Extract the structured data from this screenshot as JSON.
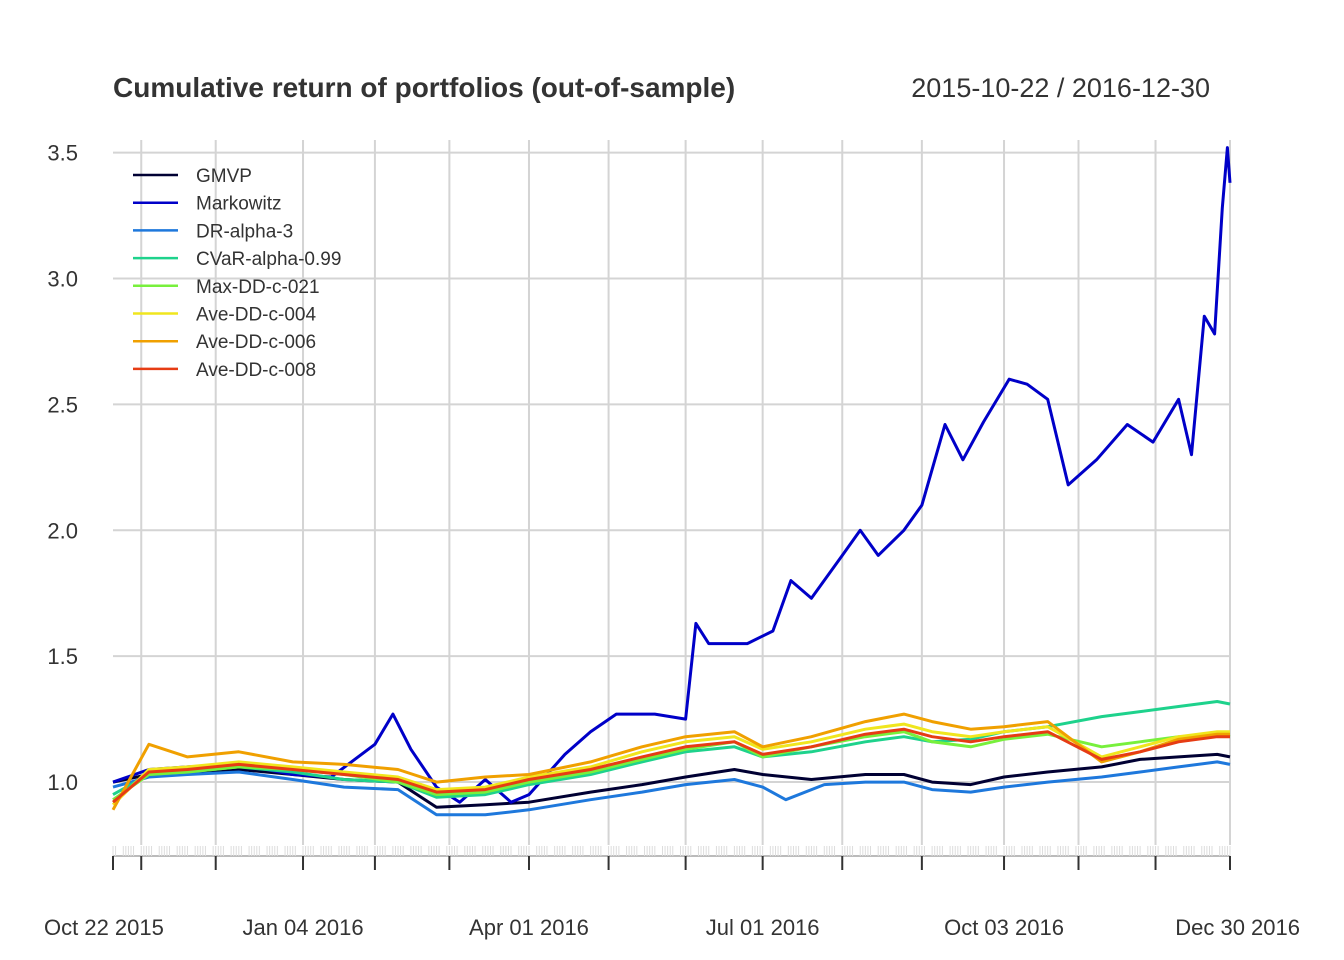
{
  "chart_data": {
    "type": "line",
    "title": "Cumulative return of portfolios (out-of-sample)",
    "date_range": "2015-10-22 / 2016-12-30",
    "x_start": "2015-10-22",
    "x_end": "2016-12-30",
    "ylim": [
      0.75,
      3.55
    ],
    "y_ticks": [
      1.0,
      1.5,
      2.0,
      2.5,
      3.0,
      3.5
    ],
    "y_tick_labels": [
      "1.0",
      "1.5",
      "2.0",
      "2.5",
      "3.0",
      "3.5"
    ],
    "x_tick_labels": [
      {
        "date": "2015-10-22",
        "label": "Oct 22 2015"
      },
      {
        "date": "2016-01-04",
        "label": "Jan 04 2016"
      },
      {
        "date": "2016-04-01",
        "label": "Apr 01 2016"
      },
      {
        "date": "2016-07-01",
        "label": "Jul 01 2016"
      },
      {
        "date": "2016-10-03",
        "label": "Oct 03 2016"
      },
      {
        "date": "2016-12-30",
        "label": "Dec 30 2016"
      }
    ],
    "x_minor_ticks": [
      "2015-11-02",
      "2015-12-01",
      "2016-01-04",
      "2016-02-01",
      "2016-03-01",
      "2016-04-01",
      "2016-05-02",
      "2016-06-01",
      "2016-07-01",
      "2016-08-01",
      "2016-09-01",
      "2016-10-03",
      "2016-11-01",
      "2016-12-01",
      "2016-12-30"
    ],
    "grid": true,
    "legend_position": "top-left",
    "series": [
      {
        "name": "GMVP",
        "color": "#000033",
        "points": [
          [
            "2015-10-22",
            1.0
          ],
          [
            "2015-11-05",
            1.03
          ],
          [
            "2015-11-20",
            1.04
          ],
          [
            "2015-12-10",
            1.05
          ],
          [
            "2015-12-31",
            1.03
          ],
          [
            "2016-01-20",
            1.01
          ],
          [
            "2016-02-10",
            1.0
          ],
          [
            "2016-02-25",
            0.9
          ],
          [
            "2016-03-15",
            0.91
          ],
          [
            "2016-04-01",
            0.92
          ],
          [
            "2016-04-25",
            0.96
          ],
          [
            "2016-05-15",
            0.99
          ],
          [
            "2016-06-01",
            1.02
          ],
          [
            "2016-06-20",
            1.05
          ],
          [
            "2016-07-01",
            1.03
          ],
          [
            "2016-07-20",
            1.01
          ],
          [
            "2016-08-10",
            1.03
          ],
          [
            "2016-08-25",
            1.03
          ],
          [
            "2016-09-05",
            1.0
          ],
          [
            "2016-09-20",
            0.99
          ],
          [
            "2016-10-03",
            1.02
          ],
          [
            "2016-10-20",
            1.04
          ],
          [
            "2016-11-10",
            1.06
          ],
          [
            "2016-11-25",
            1.09
          ],
          [
            "2016-12-10",
            1.1
          ],
          [
            "2016-12-25",
            1.11
          ],
          [
            "2016-12-30",
            1.1
          ]
        ]
      },
      {
        "name": "Markowitz",
        "color": "#0000c8",
        "points": [
          [
            "2015-10-22",
            1.0
          ],
          [
            "2015-11-05",
            1.05
          ],
          [
            "2015-11-20",
            1.06
          ],
          [
            "2015-12-10",
            1.07
          ],
          [
            "2015-12-31",
            1.03
          ],
          [
            "2016-01-15",
            1.02
          ],
          [
            "2016-02-01",
            1.15
          ],
          [
            "2016-02-08",
            1.27
          ],
          [
            "2016-02-15",
            1.13
          ],
          [
            "2016-02-25",
            0.98
          ],
          [
            "2016-03-05",
            0.92
          ],
          [
            "2016-03-15",
            1.01
          ],
          [
            "2016-03-25",
            0.92
          ],
          [
            "2016-04-01",
            0.95
          ],
          [
            "2016-04-15",
            1.11
          ],
          [
            "2016-04-25",
            1.2
          ],
          [
            "2016-05-05",
            1.27
          ],
          [
            "2016-05-20",
            1.27
          ],
          [
            "2016-06-01",
            1.25
          ],
          [
            "2016-06-05",
            1.63
          ],
          [
            "2016-06-10",
            1.55
          ],
          [
            "2016-06-25",
            1.55
          ],
          [
            "2016-07-05",
            1.6
          ],
          [
            "2016-07-12",
            1.8
          ],
          [
            "2016-07-20",
            1.73
          ],
          [
            "2016-08-01",
            1.9
          ],
          [
            "2016-08-08",
            2.0
          ],
          [
            "2016-08-15",
            1.9
          ],
          [
            "2016-08-25",
            2.0
          ],
          [
            "2016-09-01",
            2.1
          ],
          [
            "2016-09-10",
            2.42
          ],
          [
            "2016-09-17",
            2.28
          ],
          [
            "2016-09-25",
            2.43
          ],
          [
            "2016-10-05",
            2.6
          ],
          [
            "2016-10-12",
            2.58
          ],
          [
            "2016-10-20",
            2.52
          ],
          [
            "2016-10-28",
            2.18
          ],
          [
            "2016-11-08",
            2.28
          ],
          [
            "2016-11-20",
            2.42
          ],
          [
            "2016-11-30",
            2.35
          ],
          [
            "2016-12-10",
            2.52
          ],
          [
            "2016-12-15",
            2.3
          ],
          [
            "2016-12-20",
            2.85
          ],
          [
            "2016-12-24",
            2.78
          ],
          [
            "2016-12-27",
            3.28
          ],
          [
            "2016-12-29",
            3.52
          ],
          [
            "2016-12-30",
            3.38
          ]
        ]
      },
      {
        "name": "DR-alpha-3",
        "color": "#1e78dc",
        "points": [
          [
            "2015-10-22",
            0.98
          ],
          [
            "2015-11-05",
            1.02
          ],
          [
            "2015-11-20",
            1.03
          ],
          [
            "2015-12-10",
            1.04
          ],
          [
            "2015-12-31",
            1.01
          ],
          [
            "2016-01-20",
            0.98
          ],
          [
            "2016-02-10",
            0.97
          ],
          [
            "2016-02-25",
            0.87
          ],
          [
            "2016-03-15",
            0.87
          ],
          [
            "2016-04-01",
            0.89
          ],
          [
            "2016-04-25",
            0.93
          ],
          [
            "2016-05-15",
            0.96
          ],
          [
            "2016-06-01",
            0.99
          ],
          [
            "2016-06-20",
            1.01
          ],
          [
            "2016-07-01",
            0.98
          ],
          [
            "2016-07-10",
            0.93
          ],
          [
            "2016-07-25",
            0.99
          ],
          [
            "2016-08-10",
            1.0
          ],
          [
            "2016-08-25",
            1.0
          ],
          [
            "2016-09-05",
            0.97
          ],
          [
            "2016-09-20",
            0.96
          ],
          [
            "2016-10-03",
            0.98
          ],
          [
            "2016-10-20",
            1.0
          ],
          [
            "2016-11-10",
            1.02
          ],
          [
            "2016-11-25",
            1.04
          ],
          [
            "2016-12-10",
            1.06
          ],
          [
            "2016-12-25",
            1.08
          ],
          [
            "2016-12-30",
            1.07
          ]
        ]
      },
      {
        "name": "CVaR-alpha-0.99",
        "color": "#1ed28c",
        "points": [
          [
            "2015-10-22",
            0.95
          ],
          [
            "2015-11-05",
            1.03
          ],
          [
            "2015-11-20",
            1.04
          ],
          [
            "2015-12-10",
            1.06
          ],
          [
            "2015-12-31",
            1.04
          ],
          [
            "2016-01-20",
            1.01
          ],
          [
            "2016-02-10",
            1.0
          ],
          [
            "2016-02-25",
            0.94
          ],
          [
            "2016-03-15",
            0.95
          ],
          [
            "2016-04-01",
            0.99
          ],
          [
            "2016-04-25",
            1.03
          ],
          [
            "2016-05-15",
            1.08
          ],
          [
            "2016-06-01",
            1.12
          ],
          [
            "2016-06-20",
            1.14
          ],
          [
            "2016-07-01",
            1.1
          ],
          [
            "2016-07-20",
            1.12
          ],
          [
            "2016-08-10",
            1.16
          ],
          [
            "2016-08-25",
            1.18
          ],
          [
            "2016-09-05",
            1.16
          ],
          [
            "2016-09-20",
            1.17
          ],
          [
            "2016-10-03",
            1.2
          ],
          [
            "2016-10-20",
            1.22
          ],
          [
            "2016-11-10",
            1.26
          ],
          [
            "2016-11-25",
            1.28
          ],
          [
            "2016-12-10",
            1.3
          ],
          [
            "2016-12-25",
            1.32
          ],
          [
            "2016-12-30",
            1.31
          ]
        ]
      },
      {
        "name": "Max-DD-c-021",
        "color": "#78f03c",
        "points": [
          [
            "2015-10-22",
            0.93
          ],
          [
            "2015-11-05",
            1.03
          ],
          [
            "2015-11-20",
            1.04
          ],
          [
            "2015-12-10",
            1.06
          ],
          [
            "2015-12-31",
            1.05
          ],
          [
            "2016-01-20",
            1.03
          ],
          [
            "2016-02-10",
            1.0
          ],
          [
            "2016-02-25",
            0.95
          ],
          [
            "2016-03-15",
            0.96
          ],
          [
            "2016-04-01",
            1.0
          ],
          [
            "2016-04-25",
            1.04
          ],
          [
            "2016-05-15",
            1.09
          ],
          [
            "2016-06-01",
            1.13
          ],
          [
            "2016-06-20",
            1.16
          ],
          [
            "2016-07-01",
            1.1
          ],
          [
            "2016-07-20",
            1.14
          ],
          [
            "2016-08-10",
            1.18
          ],
          [
            "2016-08-25",
            1.2
          ],
          [
            "2016-09-05",
            1.16
          ],
          [
            "2016-09-20",
            1.14
          ],
          [
            "2016-10-03",
            1.17
          ],
          [
            "2016-10-20",
            1.19
          ],
          [
            "2016-11-10",
            1.14
          ],
          [
            "2016-11-25",
            1.16
          ],
          [
            "2016-12-10",
            1.18
          ],
          [
            "2016-12-25",
            1.19
          ],
          [
            "2016-12-30",
            1.18
          ]
        ]
      },
      {
        "name": "Ave-DD-c-004",
        "color": "#f0e61e",
        "points": [
          [
            "2015-10-22",
            0.91
          ],
          [
            "2015-11-05",
            1.05
          ],
          [
            "2015-11-20",
            1.06
          ],
          [
            "2015-12-10",
            1.08
          ],
          [
            "2015-12-31",
            1.06
          ],
          [
            "2016-01-20",
            1.04
          ],
          [
            "2016-02-10",
            1.02
          ],
          [
            "2016-02-25",
            0.97
          ],
          [
            "2016-03-15",
            0.98
          ],
          [
            "2016-04-01",
            1.02
          ],
          [
            "2016-04-25",
            1.06
          ],
          [
            "2016-05-15",
            1.12
          ],
          [
            "2016-06-01",
            1.16
          ],
          [
            "2016-06-20",
            1.18
          ],
          [
            "2016-07-01",
            1.13
          ],
          [
            "2016-07-20",
            1.16
          ],
          [
            "2016-08-10",
            1.21
          ],
          [
            "2016-08-25",
            1.23
          ],
          [
            "2016-09-05",
            1.2
          ],
          [
            "2016-09-20",
            1.18
          ],
          [
            "2016-10-03",
            1.2
          ],
          [
            "2016-10-20",
            1.22
          ],
          [
            "2016-11-10",
            1.1
          ],
          [
            "2016-11-25",
            1.14
          ],
          [
            "2016-12-10",
            1.18
          ],
          [
            "2016-12-25",
            1.2
          ],
          [
            "2016-12-30",
            1.2
          ]
        ]
      },
      {
        "name": "Ave-DD-c-006",
        "color": "#f0a000",
        "points": [
          [
            "2015-10-22",
            0.89
          ],
          [
            "2015-11-05",
            1.15
          ],
          [
            "2015-11-20",
            1.1
          ],
          [
            "2015-12-10",
            1.12
          ],
          [
            "2015-12-31",
            1.08
          ],
          [
            "2016-01-20",
            1.07
          ],
          [
            "2016-02-10",
            1.05
          ],
          [
            "2016-02-25",
            1.0
          ],
          [
            "2016-03-15",
            1.02
          ],
          [
            "2016-04-01",
            1.03
          ],
          [
            "2016-04-25",
            1.08
          ],
          [
            "2016-05-15",
            1.14
          ],
          [
            "2016-06-01",
            1.18
          ],
          [
            "2016-06-20",
            1.2
          ],
          [
            "2016-07-01",
            1.14
          ],
          [
            "2016-07-20",
            1.18
          ],
          [
            "2016-08-10",
            1.24
          ],
          [
            "2016-08-25",
            1.27
          ],
          [
            "2016-09-05",
            1.24
          ],
          [
            "2016-09-20",
            1.21
          ],
          [
            "2016-10-03",
            1.22
          ],
          [
            "2016-10-20",
            1.24
          ],
          [
            "2016-11-10",
            1.08
          ],
          [
            "2016-11-25",
            1.12
          ],
          [
            "2016-12-10",
            1.17
          ],
          [
            "2016-12-25",
            1.19
          ],
          [
            "2016-12-30",
            1.19
          ]
        ]
      },
      {
        "name": "Ave-DD-c-008",
        "color": "#e63c14",
        "points": [
          [
            "2015-10-22",
            0.92
          ],
          [
            "2015-11-05",
            1.04
          ],
          [
            "2015-11-20",
            1.05
          ],
          [
            "2015-12-10",
            1.07
          ],
          [
            "2015-12-31",
            1.05
          ],
          [
            "2016-01-20",
            1.03
          ],
          [
            "2016-02-10",
            1.01
          ],
          [
            "2016-02-25",
            0.96
          ],
          [
            "2016-03-15",
            0.97
          ],
          [
            "2016-04-01",
            1.01
          ],
          [
            "2016-04-25",
            1.05
          ],
          [
            "2016-05-15",
            1.1
          ],
          [
            "2016-06-01",
            1.14
          ],
          [
            "2016-06-20",
            1.16
          ],
          [
            "2016-07-01",
            1.11
          ],
          [
            "2016-07-20",
            1.14
          ],
          [
            "2016-08-10",
            1.19
          ],
          [
            "2016-08-25",
            1.21
          ],
          [
            "2016-09-05",
            1.18
          ],
          [
            "2016-09-20",
            1.16
          ],
          [
            "2016-10-03",
            1.18
          ],
          [
            "2016-10-20",
            1.2
          ],
          [
            "2016-11-10",
            1.09
          ],
          [
            "2016-11-25",
            1.12
          ],
          [
            "2016-12-10",
            1.16
          ],
          [
            "2016-12-25",
            1.18
          ],
          [
            "2016-12-30",
            1.18
          ]
        ]
      }
    ]
  }
}
